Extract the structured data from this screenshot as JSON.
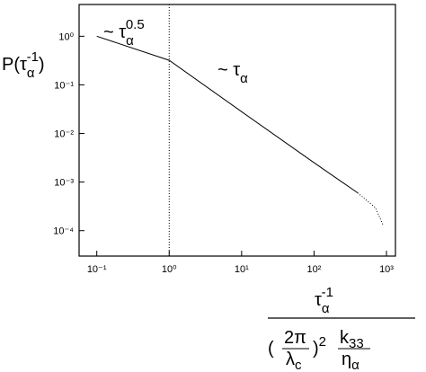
{
  "chart_data": {
    "type": "line",
    "xscale": "log",
    "yscale": "log",
    "xlim": [
      0.057,
      1330
    ],
    "ylim": [
      3e-05,
      4.5
    ],
    "xticks": [
      {
        "value": 0.1,
        "label": "10⁻¹"
      },
      {
        "value": 1,
        "label": "10⁰"
      },
      {
        "value": 10,
        "label": "10¹"
      },
      {
        "value": 100,
        "label": "10²"
      },
      {
        "value": 1000,
        "label": "10³"
      }
    ],
    "yticks": [
      {
        "value": 0.0001,
        "label": "10⁻⁴"
      },
      {
        "value": 0.001,
        "label": "10⁻³"
      },
      {
        "value": 0.01,
        "label": "10⁻²"
      },
      {
        "value": 0.1,
        "label": "10⁻¹"
      },
      {
        "value": 1,
        "label": "10⁰"
      }
    ],
    "vline": 1,
    "series": [
      {
        "color": "#000000",
        "dash": "solid",
        "x": [
          0.1,
          1,
          10,
          100,
          400
        ],
        "values": [
          1.0,
          0.32,
          0.028,
          0.0025,
          0.0006
        ]
      },
      {
        "color": "#000000",
        "dash": "dotted",
        "x": [
          400,
          700,
          900
        ],
        "values": [
          0.0006,
          0.0003,
          0.00013
        ]
      }
    ],
    "ylabel": {
      "text": "P(τ",
      "sub": "α",
      "sup": "-1",
      "close": ")"
    },
    "xlabel": {
      "numerator": {
        "text": "τ",
        "sub": "α",
        "sup": "-1"
      },
      "denominator": {
        "open": "(",
        "top": "2π",
        "bottom": "λ",
        "bottom_sub": "c",
        "close": ")",
        "power": "2",
        "k": "k",
        "k_sub": "33",
        "eta": "η",
        "eta_sub": "α"
      }
    },
    "annotations": [
      {
        "text": "~ τ",
        "sub": "α",
        "sup": "0.5"
      },
      {
        "text": "~ τ",
        "sub": "α"
      }
    ]
  }
}
